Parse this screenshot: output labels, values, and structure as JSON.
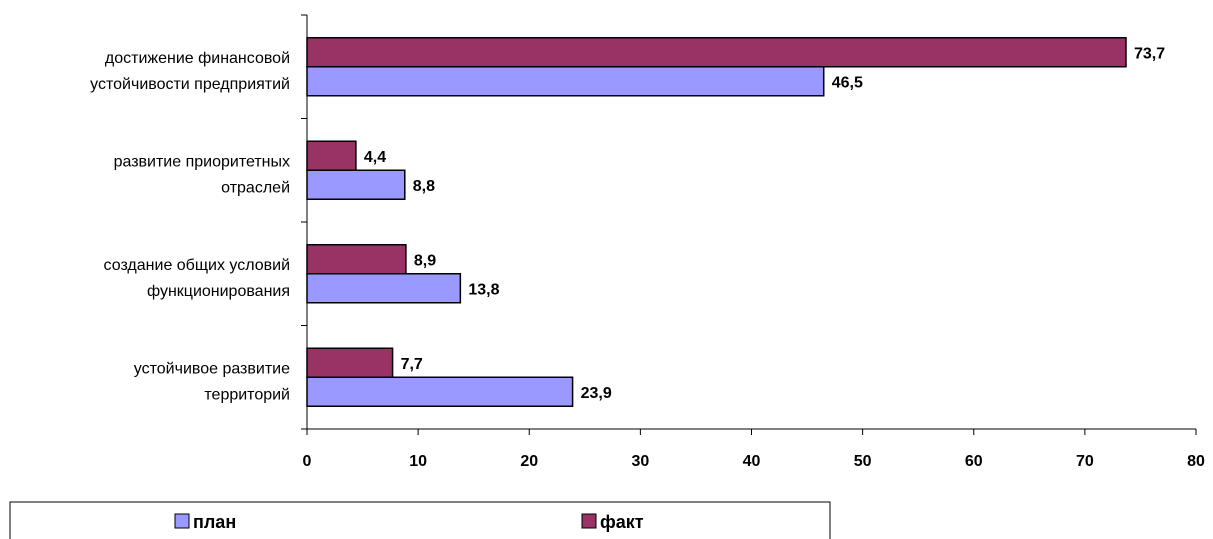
{
  "chart_data": {
    "type": "bar",
    "orientation": "horizontal",
    "categories": [
      [
        "достижение финансовой",
        "устойчивости предприятий"
      ],
      [
        "развитие приоритетных",
        "отраслей"
      ],
      [
        "создание общих условий",
        "функционирования"
      ],
      [
        "устойчивое развитие",
        "территорий"
      ]
    ],
    "series": [
      {
        "name": "факт",
        "values": [
          73.7,
          4.4,
          8.9,
          7.7
        ],
        "value_labels": [
          "73,7",
          "4,4",
          "8,9",
          "7,7"
        ],
        "color": "#993366"
      },
      {
        "name": "план",
        "values": [
          46.5,
          8.8,
          13.8,
          23.9
        ],
        "value_labels": [
          "46,5",
          "8,8",
          "13,8",
          "23,9"
        ],
        "color": "#9999ff"
      }
    ],
    "xlim": [
      0,
      80
    ],
    "xticks": [
      0,
      10,
      20,
      30,
      40,
      50,
      60,
      70,
      80
    ],
    "grid": false,
    "legend": {
      "placement": "bottom",
      "entries": [
        {
          "name": "план",
          "color": "#9999ff"
        },
        {
          "name": "факт",
          "color": "#993366"
        }
      ]
    }
  }
}
